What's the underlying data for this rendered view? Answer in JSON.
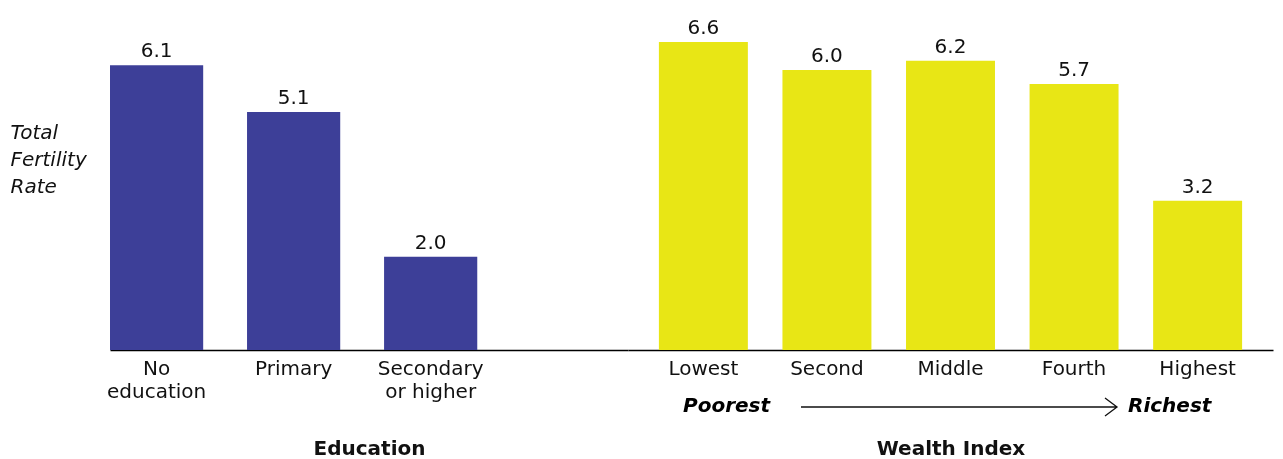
{
  "chart_data": [
    {
      "type": "bar",
      "ylabel": "Total Fertility Rate",
      "xlabel": "Education",
      "categories": [
        "No education",
        "Primary",
        "Secondary or higher"
      ],
      "values": [
        6.1,
        5.1,
        2.0
      ],
      "value_labels": [
        "6.1",
        "5.1",
        "2.0"
      ],
      "color": "#3d3f98",
      "tick_labels": "x"
    },
    {
      "type": "bar",
      "xlabel": "Wealth Index",
      "categories": [
        "Lowest",
        "Second",
        "Middle",
        "Fourth",
        "Highest"
      ],
      "values": [
        6.6,
        6.0,
        6.2,
        5.7,
        3.2
      ],
      "value_labels": [
        "6.6",
        "6.0",
        "6.2",
        "5.7",
        "3.2"
      ],
      "color": "#e8e615",
      "tick_labels": "x",
      "annotations": [
        "Poorest",
        "Richest"
      ]
    }
  ]
}
